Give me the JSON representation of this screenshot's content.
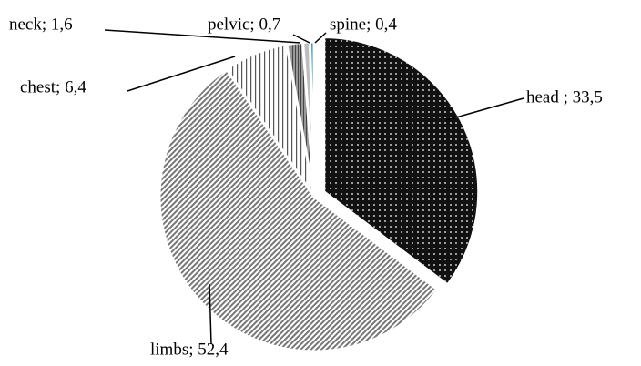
{
  "chart_data": {
    "type": "pie",
    "values": [
      33.5,
      52.4,
      6.4,
      1.6,
      0.7,
      0.4
    ],
    "value_labels": [
      "head ; 33,5",
      "limbs; 52,4",
      "chest; 6,4",
      "neck; 1,6",
      "pelvic; 0,7",
      "spine; 0,4"
    ],
    "colors": [
      "#111111",
      "#8a8a8a",
      "#ffffff",
      "#9a9a9a",
      "#bdbdbd",
      "#3a8fb0"
    ]
  }
}
